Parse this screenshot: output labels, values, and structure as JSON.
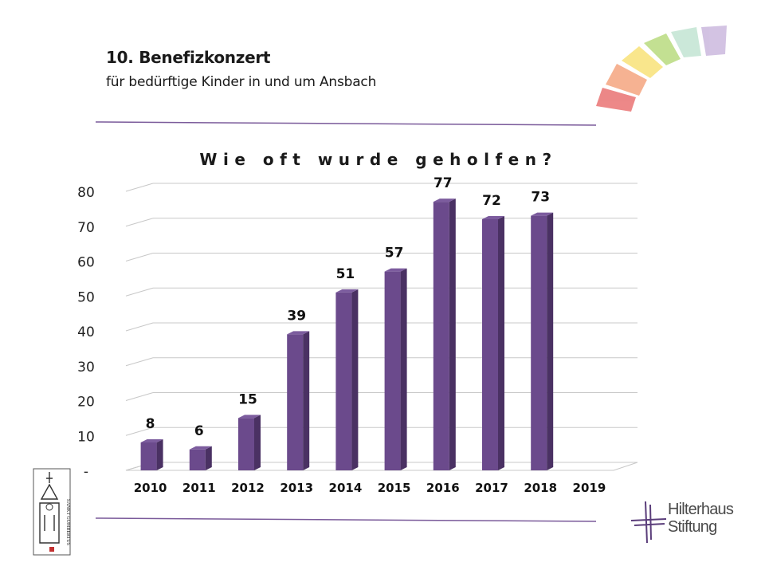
{
  "header": {
    "title": "10. Benefizkonzert",
    "subtitle": "für bedürftige Kinder in und um Ansbach"
  },
  "colors": {
    "bar_front": "#6b4a8c",
    "bar_side": "#4a3163",
    "bar_top": "#7c5c9e",
    "rule": "#7a5a9a",
    "grid": "#c8c8c8"
  },
  "chart_data": {
    "type": "bar",
    "title": "Wie oft wurde geholfen?",
    "categories": [
      "2010",
      "2011",
      "2012",
      "2013",
      "2014",
      "2015",
      "2016",
      "2017",
      "2018",
      "2019"
    ],
    "values": [
      8,
      6,
      15,
      39,
      51,
      57,
      77,
      72,
      73,
      null
    ],
    "data_labels": [
      "8",
      "6",
      "15",
      "39",
      "51",
      "57",
      "77",
      "72",
      "73",
      ""
    ],
    "y_ticks": [
      "-",
      "10",
      "20",
      "30",
      "40",
      "50",
      "60",
      "70",
      "80"
    ],
    "ylim": [
      0,
      80
    ],
    "grid": true,
    "style": "3d-column"
  },
  "footer": {
    "stamp_text": "SANKT GUMBERTUS",
    "logo_line1": "Hilterhaus",
    "logo_line2": "Stiftung"
  }
}
